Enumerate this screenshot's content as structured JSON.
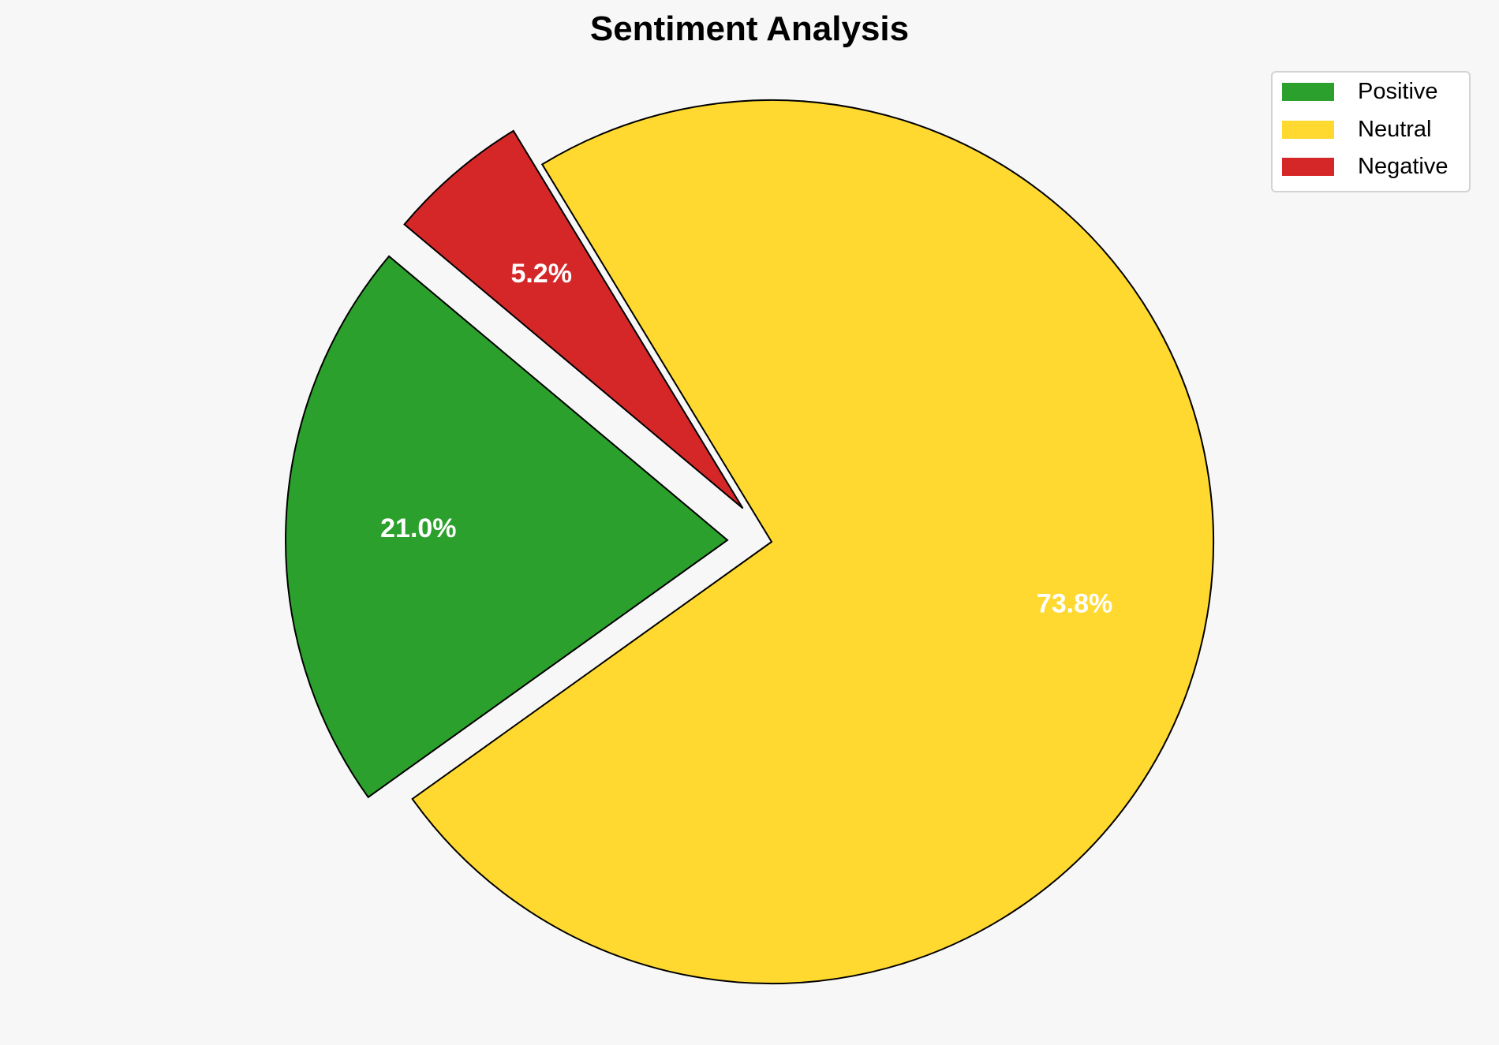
{
  "chart_data": {
    "type": "pie",
    "title": "Sentiment Analysis",
    "categories": [
      "Positive",
      "Neutral",
      "Negative"
    ],
    "values": [
      21.0,
      73.8,
      5.2
    ],
    "labels": [
      "21.0%",
      "73.8%",
      "5.2%"
    ],
    "colors": [
      "#2ca02c",
      "#ffd92f",
      "#d62728"
    ],
    "exploded": [
      true,
      false,
      true
    ],
    "start_angle_deg": 140,
    "direction": "counterclockwise",
    "legend_placement": "top-right"
  }
}
